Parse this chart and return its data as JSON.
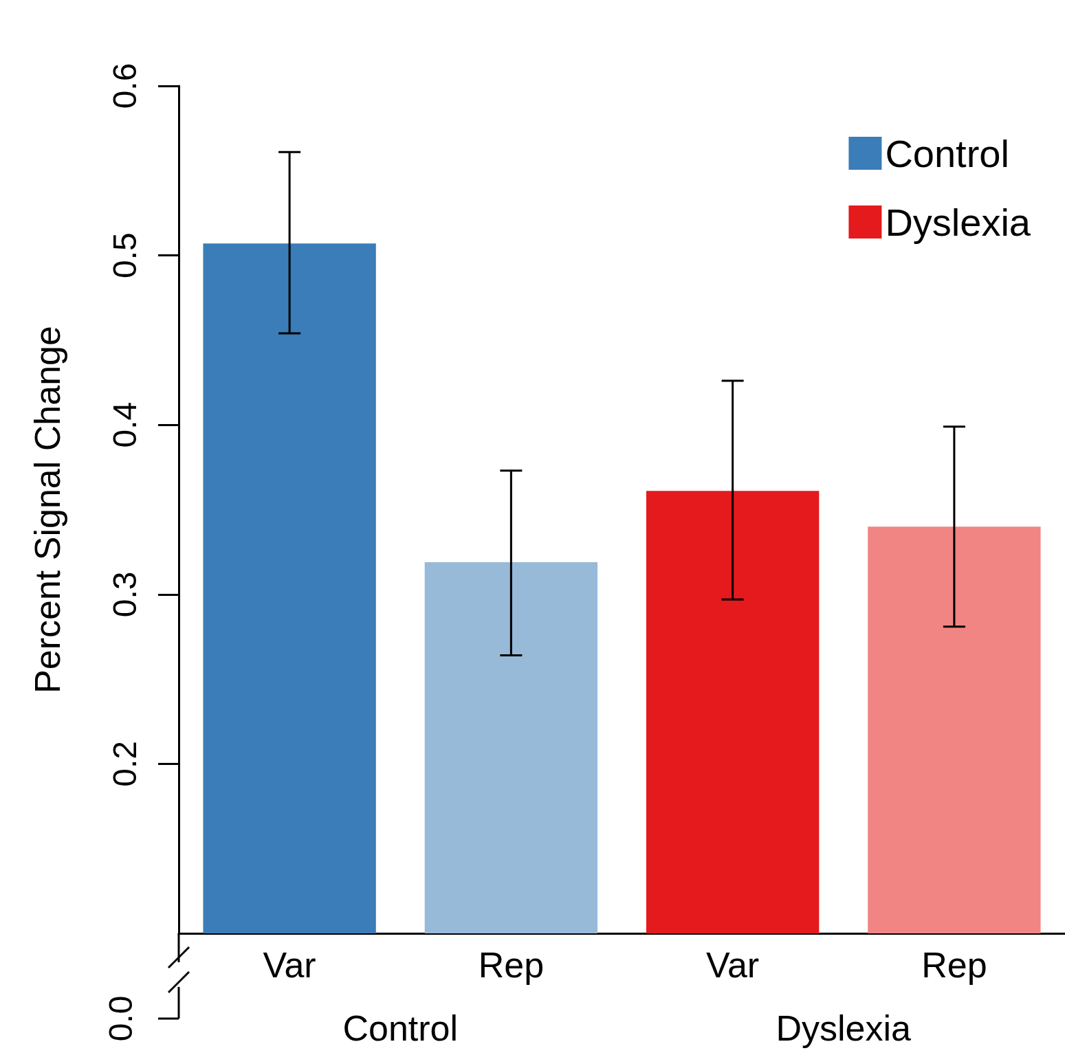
{
  "chart_data": {
    "type": "bar",
    "ylabel": "Percent Signal Change",
    "categories": [
      "Var",
      "Rep",
      "Var",
      "Rep"
    ],
    "series": [
      {
        "name": "Control",
        "color": "#3a7db8",
        "colors": [
          "#3a7db8",
          "#97bad9",
          null,
          null
        ],
        "values": [
          0.507,
          0.319,
          null,
          null
        ],
        "errors": [
          [
            0.454,
            0.561
          ],
          [
            0.264,
            0.373
          ],
          null,
          null
        ]
      },
      {
        "name": "Dyslexia",
        "color": "#e41a1c",
        "colors": [
          null,
          null,
          "#e41a1c",
          "#f08584"
        ],
        "values": [
          null,
          null,
          0.361,
          0.34
        ],
        "errors": [
          null,
          null,
          [
            0.297,
            0.426
          ],
          [
            0.281,
            0.399
          ]
        ]
      }
    ],
    "ylim": [
      0.1,
      0.6
    ],
    "yticks": [
      0.2,
      0.3,
      0.4,
      0.5,
      0.6
    ],
    "grid": false,
    "legend": "top right",
    "annotations": [
      "0.0",
      "Control",
      "Dyslexia"
    ]
  }
}
